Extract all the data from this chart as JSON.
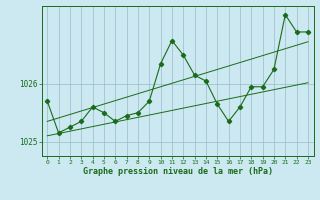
{
  "x": [
    0,
    1,
    2,
    3,
    4,
    5,
    6,
    7,
    8,
    9,
    10,
    11,
    12,
    13,
    14,
    15,
    16,
    17,
    18,
    19,
    20,
    21,
    22,
    23
  ],
  "y_main": [
    1025.7,
    1025.15,
    1025.25,
    1025.35,
    1025.6,
    1025.5,
    1025.35,
    1025.45,
    1025.5,
    1025.7,
    1026.35,
    1026.75,
    1026.5,
    1026.15,
    1026.05,
    1025.65,
    1025.35,
    1025.6,
    1025.95,
    1025.95,
    1026.25,
    1027.2,
    1026.9,
    1026.9
  ],
  "y_line1": [
    1025.1,
    1025.14,
    1025.18,
    1025.22,
    1025.26,
    1025.3,
    1025.34,
    1025.38,
    1025.42,
    1025.46,
    1025.5,
    1025.54,
    1025.58,
    1025.62,
    1025.66,
    1025.7,
    1025.74,
    1025.78,
    1025.82,
    1025.86,
    1025.9,
    1025.94,
    1025.98,
    1026.02
  ],
  "y_line2": [
    1025.35,
    1025.41,
    1025.47,
    1025.53,
    1025.59,
    1025.65,
    1025.71,
    1025.77,
    1025.83,
    1025.89,
    1025.95,
    1026.01,
    1026.07,
    1026.13,
    1026.19,
    1026.25,
    1026.31,
    1026.37,
    1026.43,
    1026.49,
    1026.55,
    1026.61,
    1026.67,
    1026.73
  ],
  "yticks": [
    1025,
    1026
  ],
  "ylim": [
    1024.75,
    1027.35
  ],
  "xlim": [
    -0.5,
    23.5
  ],
  "line_color": "#1a6b1a",
  "bg_color": "#cce8f0",
  "grid_color": "#99bbcc",
  "xlabel": "Graphe pression niveau de la mer (hPa)"
}
